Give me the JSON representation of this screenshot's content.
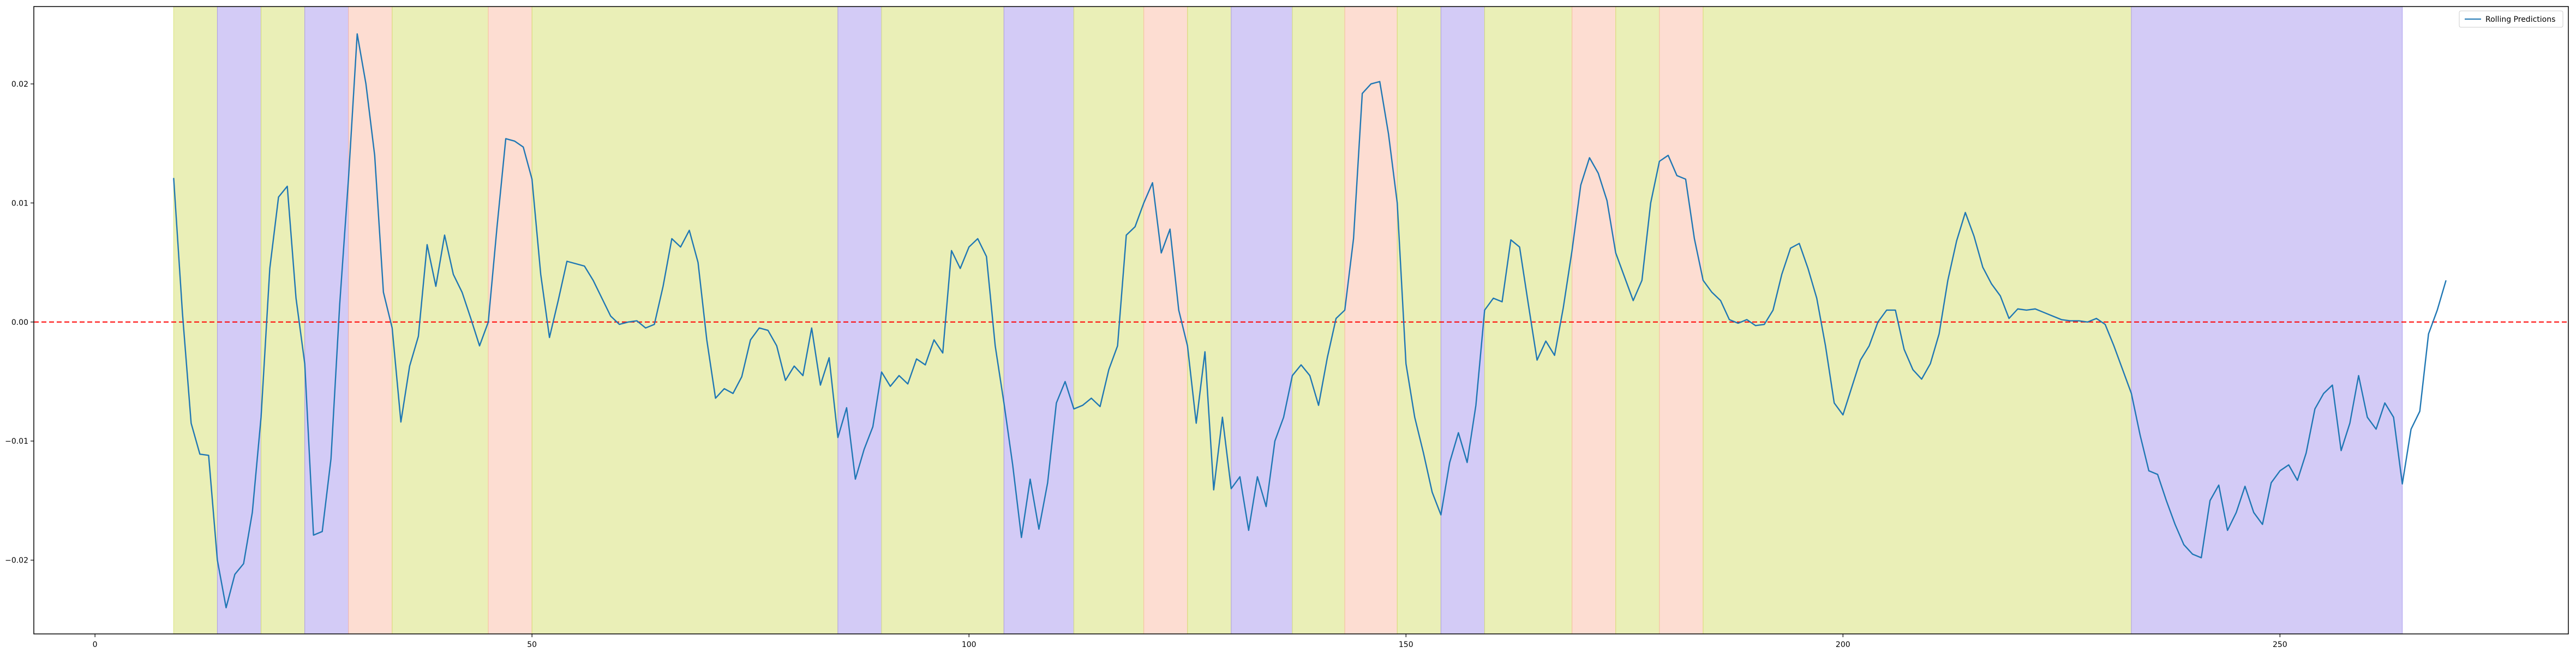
{
  "chart_data": {
    "type": "line",
    "title": "",
    "xlabel": "",
    "ylabel": "",
    "xlim": [
      -7,
      283
    ],
    "ylim": [
      -0.0262,
      0.0265
    ],
    "xticks": [
      0,
      50,
      100,
      150,
      200,
      250
    ],
    "xtick_labels": [
      "0",
      "50",
      "100",
      "150",
      "200",
      "250"
    ],
    "yticks": [
      -0.02,
      -0.01,
      0.0,
      0.01,
      0.02
    ],
    "ytick_labels": [
      "−0.02",
      "−0.01",
      "0.00",
      "0.01",
      "0.02"
    ],
    "grid": false,
    "legend": {
      "placement": "top-right",
      "entries": [
        {
          "label": "Rolling Predictions",
          "color": "#1f77b4"
        }
      ]
    },
    "reference_line": {
      "y": 0.0,
      "color": "#ff0000",
      "style": "dashed"
    },
    "colors": {
      "line": "#1f77b4",
      "green_band": "#d5e070",
      "purple_band": "#a898ee",
      "red_band": "#fbbba6"
    },
    "regions": [
      {
        "start": 9,
        "end": 14,
        "color": "green"
      },
      {
        "start": 14,
        "end": 19,
        "color": "purple"
      },
      {
        "start": 19,
        "end": 24,
        "color": "green"
      },
      {
        "start": 24,
        "end": 29,
        "color": "purple"
      },
      {
        "start": 29,
        "end": 34,
        "color": "red"
      },
      {
        "start": 34,
        "end": 45,
        "color": "green"
      },
      {
        "start": 45,
        "end": 50,
        "color": "red"
      },
      {
        "start": 50,
        "end": 85,
        "color": "green"
      },
      {
        "start": 85,
        "end": 90,
        "color": "purple"
      },
      {
        "start": 90,
        "end": 104,
        "color": "green"
      },
      {
        "start": 104,
        "end": 112,
        "color": "purple"
      },
      {
        "start": 112,
        "end": 120,
        "color": "green"
      },
      {
        "start": 120,
        "end": 125,
        "color": "red"
      },
      {
        "start": 125,
        "end": 130,
        "color": "green"
      },
      {
        "start": 130,
        "end": 137,
        "color": "purple"
      },
      {
        "start": 137,
        "end": 143,
        "color": "green"
      },
      {
        "start": 143,
        "end": 149,
        "color": "red"
      },
      {
        "start": 149,
        "end": 154,
        "color": "green"
      },
      {
        "start": 154,
        "end": 159,
        "color": "purple"
      },
      {
        "start": 159,
        "end": 169,
        "color": "green"
      },
      {
        "start": 169,
        "end": 174,
        "color": "red"
      },
      {
        "start": 174,
        "end": 179,
        "color": "green"
      },
      {
        "start": 179,
        "end": 184,
        "color": "red"
      },
      {
        "start": 184,
        "end": 233,
        "color": "green"
      },
      {
        "start": 233,
        "end": 264,
        "color": "purple"
      }
    ],
    "series": [
      {
        "name": "Rolling Predictions",
        "x_start": 9,
        "x_step": 1,
        "values": [
          0.0121,
          0.0008,
          -0.0085,
          -0.0111,
          -0.0112,
          -0.02,
          -0.024,
          -0.0212,
          -0.0203,
          -0.016,
          -0.008,
          0.0045,
          0.0105,
          0.0114,
          0.002,
          -0.0035,
          -0.0179,
          -0.0176,
          -0.0115,
          0.0015,
          0.012,
          0.0242,
          0.02,
          0.014,
          0.0025,
          -0.0005,
          -0.0084,
          -0.0037,
          -0.0012,
          0.0065,
          0.003,
          0.0073,
          0.004,
          0.0025,
          0.0003,
          -0.002,
          0.0,
          0.008,
          0.0154,
          0.0152,
          0.0147,
          0.012,
          0.004,
          -0.0013,
          0.0018,
          0.0051,
          0.0049,
          0.0047,
          0.0035,
          0.002,
          0.0005,
          -0.0002,
          0.0,
          0.0001,
          -0.0005,
          -0.0002,
          0.003,
          0.007,
          0.0063,
          0.0077,
          0.005,
          -0.0015,
          -0.0064,
          -0.0056,
          -0.006,
          -0.0046,
          -0.0015,
          -0.0005,
          -0.0007,
          -0.002,
          -0.0049,
          -0.0037,
          -0.0045,
          -0.0005,
          -0.0053,
          -0.003,
          -0.0097,
          -0.0072,
          -0.0132,
          -0.0107,
          -0.0088,
          -0.0042,
          -0.0054,
          -0.0045,
          -0.0052,
          -0.0031,
          -0.0036,
          -0.0015,
          -0.0026,
          0.006,
          0.0045,
          0.0063,
          0.007,
          0.0055,
          -0.002,
          -0.0068,
          -0.012,
          -0.0181,
          -0.0132,
          -0.0174,
          -0.0135,
          -0.0068,
          -0.005,
          -0.0073,
          -0.007,
          -0.0064,
          -0.0071,
          -0.004,
          -0.002,
          0.0073,
          0.008,
          0.01,
          0.0117,
          0.0058,
          0.0078,
          0.001,
          -0.002,
          -0.0085,
          -0.0025,
          -0.0141,
          -0.008,
          -0.014,
          -0.013,
          -0.0175,
          -0.013,
          -0.0155,
          -0.01,
          -0.008,
          -0.0045,
          -0.0036,
          -0.0045,
          -0.007,
          -0.003,
          0.0003,
          0.001,
          0.007,
          0.0192,
          0.02,
          0.0202,
          0.0158,
          0.01,
          -0.0035,
          -0.008,
          -0.011,
          -0.0143,
          -0.0162,
          -0.0118,
          -0.0093,
          -0.0118,
          -0.007,
          0.001,
          0.002,
          0.0017,
          0.0069,
          0.0063,
          0.0015,
          -0.0032,
          -0.0016,
          -0.0028,
          0.0012,
          0.006,
          0.0115,
          0.0138,
          0.0125,
          0.0102,
          0.0058,
          0.0038,
          0.0018,
          0.0035,
          0.01,
          0.0135,
          0.014,
          0.0123,
          0.012,
          0.007,
          0.0035,
          0.0025,
          0.0018,
          0.0002,
          -0.0001,
          0.0002,
          -0.0003,
          -0.0002,
          0.001,
          0.004,
          0.0062,
          0.0066,
          0.0045,
          0.002,
          -0.002,
          -0.0068,
          -0.0078,
          -0.0055,
          -0.0032,
          -0.002,
          0.0,
          0.001,
          0.001,
          -0.0023,
          -0.004,
          -0.0048,
          -0.0035,
          -0.001,
          0.0035,
          0.0068,
          0.0092,
          0.0072,
          0.0046,
          0.0032,
          0.0022,
          0.0003,
          0.0011,
          0.001,
          0.0011,
          0.0008,
          0.0005,
          0.0002,
          0.0001,
          0.0001,
          0.0,
          0.0003,
          -0.0002,
          -0.002,
          -0.004,
          -0.006,
          -0.0095,
          -0.0125,
          -0.0128,
          -0.015,
          -0.017,
          -0.0187,
          -0.0195,
          -0.0198,
          -0.015,
          -0.0137,
          -0.0175,
          -0.016,
          -0.0138,
          -0.016,
          -0.017,
          -0.0135,
          -0.0125,
          -0.012,
          -0.0133,
          -0.011,
          -0.0073,
          -0.006,
          -0.0053,
          -0.0108,
          -0.0085,
          -0.0045,
          -0.008,
          -0.009,
          -0.0068,
          -0.008,
          -0.0136,
          -0.009,
          -0.0075,
          -0.001,
          0.001,
          0.0035
        ]
      }
    ]
  }
}
